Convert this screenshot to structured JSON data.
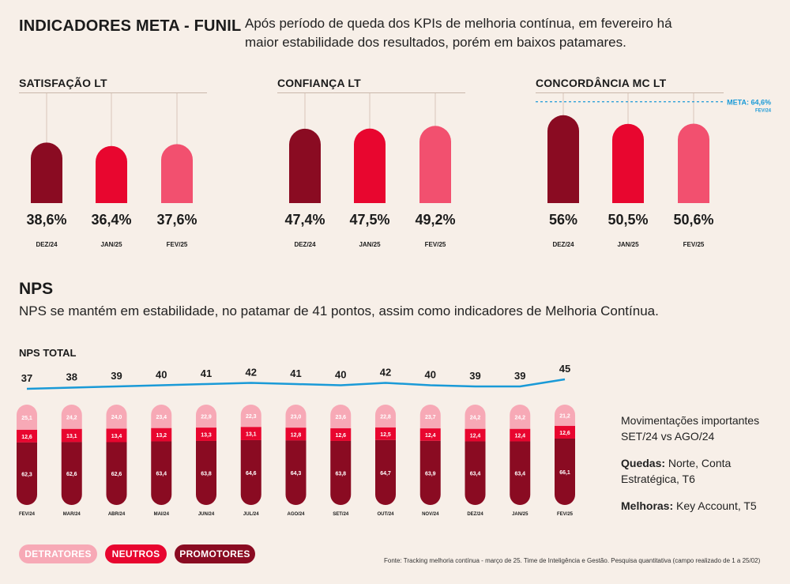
{
  "header": {
    "title": "INDICADORES META - FUNIL",
    "intro": "Após período de queda dos KPIs de melhoria contínua, em fevereiro há maior estabilidade dos resultados, porém em baixos patamares."
  },
  "colors": {
    "dark": "#8a0b22",
    "mid": "#e8062f",
    "light": "#f2506f",
    "dark_nps": "#8a0b22",
    "neutral_nps": "#e8062f",
    "detr_nps": "#f7a9b6",
    "line": "#1a9ad7",
    "meta": "#1a9ad7",
    "bg": "#f7efe8"
  },
  "chart_data": [
    {
      "type": "bar",
      "title": "SATISFAÇÃO LT",
      "categories": [
        "DEZ/24",
        "JAN/25",
        "FEV/25"
      ],
      "values": [
        38.6,
        36.4,
        37.6
      ],
      "labels": [
        "38,6%",
        "36,4%",
        "37,6%"
      ],
      "ylim": [
        0,
        70
      ]
    },
    {
      "type": "bar",
      "title": "CONFIANÇA LT",
      "categories": [
        "DEZ/24",
        "JAN/25",
        "FEV/25"
      ],
      "values": [
        47.4,
        47.5,
        49.2
      ],
      "labels": [
        "47,4%",
        "47,5%",
        "49,2%"
      ],
      "ylim": [
        0,
        70
      ]
    },
    {
      "type": "bar",
      "title": "CONCORDÂNCIA MC LT",
      "categories": [
        "DEZ/24",
        "JAN/25",
        "FEV/25"
      ],
      "values": [
        56,
        50.5,
        50.6
      ],
      "labels": [
        "56%",
        "50,5%",
        "50,6%"
      ],
      "ylim": [
        0,
        70
      ],
      "meta": {
        "value": 64.6,
        "label": "META: 64,6%",
        "sublabel": "FEV/24"
      }
    },
    {
      "type": "stacked-bar",
      "title": "NPS TOTAL",
      "categories": [
        "FEV/24",
        "MAR/24",
        "ABR/24",
        "MAI/24",
        "JUN/24",
        "JUL/24",
        "AGO/24",
        "SET/24",
        "OUT/24",
        "NOV/24",
        "DEZ/24",
        "JAN/25",
        "FEV/25"
      ],
      "series": [
        {
          "name": "PROMOTORES",
          "values": [
            62.3,
            62.6,
            62.6,
            63.4,
            63.8,
            64.6,
            64.3,
            63.8,
            64.7,
            63.9,
            63.4,
            63.4,
            66.1
          ],
          "labels": [
            "62,3",
            "62,6",
            "62,6",
            "63,4",
            "63,8",
            "64,6",
            "64,3",
            "63,8",
            "64,7",
            "63,9",
            "63,4",
            "63,4",
            "66,1"
          ]
        },
        {
          "name": "NEUTROS",
          "values": [
            12.6,
            13.1,
            13.4,
            13.2,
            13.3,
            13.1,
            12.8,
            12.6,
            12.5,
            12.4,
            12.4,
            12.4,
            12.6
          ],
          "labels": [
            "12,6",
            "13,1",
            "13,4",
            "13,2",
            "13,3",
            "13,1",
            "12,8",
            "12,6",
            "12,5",
            "12,4",
            "12,4",
            "12,4",
            "12,6"
          ]
        },
        {
          "name": "DETRATORES",
          "values": [
            25.1,
            24.2,
            24.0,
            23.4,
            22.9,
            22.3,
            23.0,
            23.6,
            22.8,
            23.7,
            24.2,
            24.2,
            21.2
          ],
          "labels": [
            "25,1",
            "24,2",
            "24,0",
            "23,4",
            "22,9",
            "22,3",
            "23,0",
            "23,6",
            "22,8",
            "23,7",
            "24,2",
            "24,2",
            "21,2"
          ]
        }
      ],
      "nps": {
        "values": [
          37,
          38,
          39,
          40,
          41,
          42,
          41,
          40,
          42,
          40,
          39,
          39,
          45
        ],
        "labels": [
          "37",
          "38",
          "39",
          "40",
          "41",
          "42",
          "41",
          "40",
          "42",
          "40",
          "39",
          "39",
          "45"
        ]
      }
    }
  ],
  "nps_section": {
    "title": "NPS",
    "subtitle": "NPS se mantém em estabilidade, no patamar de 41 pontos, assim como indicadores de Melhoria Contínua."
  },
  "notes": {
    "heading": "Movimentações importantes SET/24 vs AGO/24",
    "quedas_label": "Quedas:",
    "quedas_text": " Norte, Conta Estratégica, T6",
    "melhoras_label": "Melhoras:",
    "melhoras_text": " Key Account, T5"
  },
  "legend": {
    "detratores": "DETRATORES",
    "neutros": "NEUTROS",
    "promotores": "PROMOTORES"
  },
  "source": "Fonte: Tracking melhoria contínua - março de 25. Time de Inteligência e Gestão. Pesquisa quantitativa (campo realizado de 1 a 25/02)"
}
